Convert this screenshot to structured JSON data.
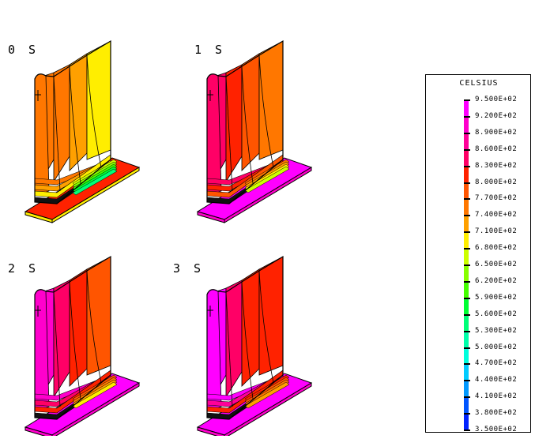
{
  "panels": [
    {
      "label": "0 S"
    },
    {
      "label": "1 S"
    },
    {
      "label": "2 S"
    },
    {
      "label": "3 S"
    }
  ],
  "legend": {
    "title": "CELSIUS",
    "entries": [
      {
        "value": "9.500E+02",
        "color": "#ff00ff"
      },
      {
        "value": "9.200E+02",
        "color": "#ff00cc"
      },
      {
        "value": "8.900E+02",
        "color": "#ff0099"
      },
      {
        "value": "8.600E+02",
        "color": "#ff0066"
      },
      {
        "value": "8.300E+02",
        "color": "#ff2200"
      },
      {
        "value": "8.000E+02",
        "color": "#ff5500"
      },
      {
        "value": "7.700E+02",
        "color": "#ff7700"
      },
      {
        "value": "7.400E+02",
        "color": "#ffa000"
      },
      {
        "value": "7.100E+02",
        "color": "#ffee00"
      },
      {
        "value": "6.800E+02",
        "color": "#ccff00"
      },
      {
        "value": "6.500E+02",
        "color": "#88ff00"
      },
      {
        "value": "6.200E+02",
        "color": "#44ff00"
      },
      {
        "value": "5.900E+02",
        "color": "#00ff33"
      },
      {
        "value": "5.600E+02",
        "color": "#00ff77"
      },
      {
        "value": "5.300E+02",
        "color": "#00ffaa"
      },
      {
        "value": "5.000E+02",
        "color": "#00ffdd"
      },
      {
        "value": "4.700E+02",
        "color": "#00ccff"
      },
      {
        "value": "4.400E+02",
        "color": "#0099ff"
      },
      {
        "value": "4.100E+02",
        "color": "#0055ff"
      },
      {
        "value": "3.800E+02",
        "color": "#0022ff"
      },
      {
        "value": "3.500E+02",
        "color": "#0000cc"
      }
    ]
  }
}
